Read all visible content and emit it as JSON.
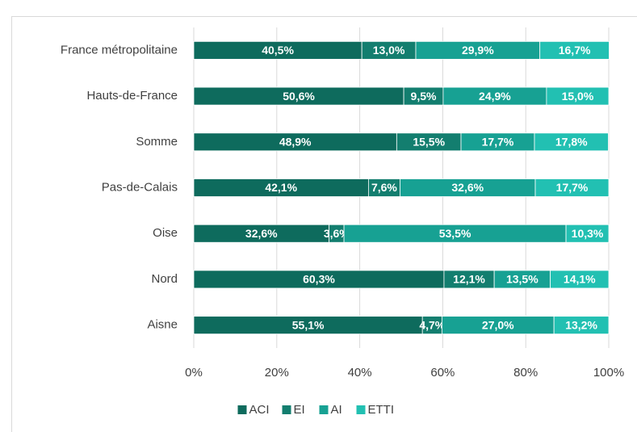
{
  "chart_data": {
    "type": "bar",
    "orientation": "horizontal",
    "stacked": true,
    "categories": [
      "France métropolitaine",
      "Hauts-de-France",
      "Somme",
      "Pas-de-Calais",
      "Oise",
      "Nord",
      "Aisne"
    ],
    "series": [
      {
        "name": "ACI",
        "color": "#0e6b5d",
        "values": [
          40.5,
          50.6,
          48.9,
          42.1,
          32.6,
          60.3,
          55.1
        ],
        "value_labels": [
          "40,5%",
          "50,6%",
          "48,9%",
          "42,1%",
          "32,6%",
          "60,3%",
          "55,1%"
        ]
      },
      {
        "name": "EI",
        "color": "#137e6f",
        "values": [
          13.0,
          9.5,
          15.5,
          7.6,
          3.6,
          12.1,
          4.7
        ],
        "value_labels": [
          "13,0%",
          "9,5%",
          "15,5%",
          "7,6%",
          "3,6%",
          "12,1%",
          "4,7%"
        ]
      },
      {
        "name": "AI",
        "color": "#17a193",
        "values": [
          29.9,
          24.9,
          17.7,
          32.6,
          53.5,
          13.5,
          27.0
        ],
        "value_labels": [
          "29,9%",
          "24,9%",
          "17,7%",
          "32,6%",
          "53,5%",
          "13,5%",
          "27,0%"
        ]
      },
      {
        "name": "ETTI",
        "color": "#22c0b2",
        "values": [
          16.7,
          15.0,
          17.8,
          17.7,
          10.3,
          14.1,
          13.2
        ],
        "value_labels": [
          "16,7%",
          "15,0%",
          "17,8%",
          "17,7%",
          "10,3%",
          "14,1%",
          "13,2%"
        ]
      }
    ],
    "xlim": [
      0,
      100
    ],
    "xticks": [
      {
        "value": 0,
        "label": "0%"
      },
      {
        "value": 20,
        "label": "20%"
      },
      {
        "value": 40,
        "label": "40%"
      },
      {
        "value": 60,
        "label": "60%"
      },
      {
        "value": 80,
        "label": "80%"
      },
      {
        "value": 100,
        "label": "100%"
      }
    ],
    "grid": true,
    "legend": "bottom"
  }
}
